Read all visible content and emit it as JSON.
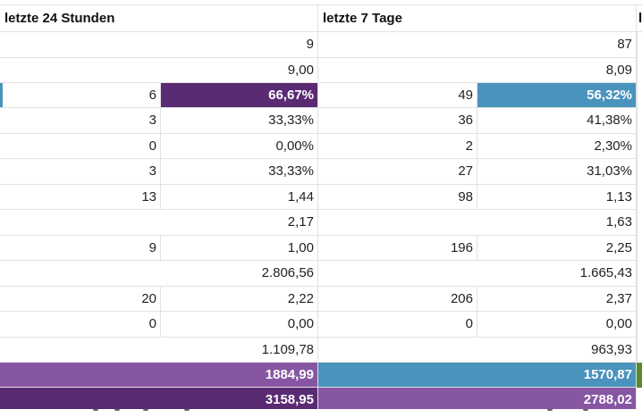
{
  "colors": {
    "dark_purple": "#5a2b73",
    "purple": "#8756a3",
    "blue": "#4a93bd",
    "green": "#5a8a2e",
    "left_accent": "#4a93bd",
    "grid": "#e2e2e2"
  },
  "headers": {
    "col_24h": "letzte 24 Stunden",
    "col_7d": "letzte 7 Tage",
    "col_next": "l"
  },
  "rows": [
    {
      "a": "",
      "b": "9",
      "c": "",
      "d": "87"
    },
    {
      "a": "",
      "b": "9,00",
      "c": "",
      "d": "8,09"
    },
    {
      "a": "6",
      "b": "66,67%",
      "c": "49",
      "d": "56,32%"
    },
    {
      "a": "3",
      "b": "33,33%",
      "c": "36",
      "d": "41,38%"
    },
    {
      "a": "0",
      "b": "0,00%",
      "c": "2",
      "d": "2,30%"
    },
    {
      "a": "3",
      "b": "33,33%",
      "c": "27",
      "d": "31,03%"
    },
    {
      "a": "13",
      "b": "1,44",
      "c": "98",
      "d": "1,13"
    },
    {
      "a": "",
      "b": "2,17",
      "c": "",
      "d": "1,63"
    },
    {
      "a": "9",
      "b": "1,00",
      "c": "196",
      "d": "2,25"
    },
    {
      "a": "",
      "b": "2.806,56",
      "c": "",
      "d": "1.665,43"
    },
    {
      "a": "20",
      "b": "2,22",
      "c": "206",
      "d": "2,37"
    },
    {
      "a": "0",
      "b": "0,00",
      "c": "0",
      "d": "0,00"
    },
    {
      "a": "",
      "b": "1.109,78",
      "c": "",
      "d": "963,93"
    }
  ],
  "totals": [
    {
      "b": "1884,99",
      "d": "1570,87"
    },
    {
      "b": "3158,95",
      "d": "2788,02"
    }
  ]
}
